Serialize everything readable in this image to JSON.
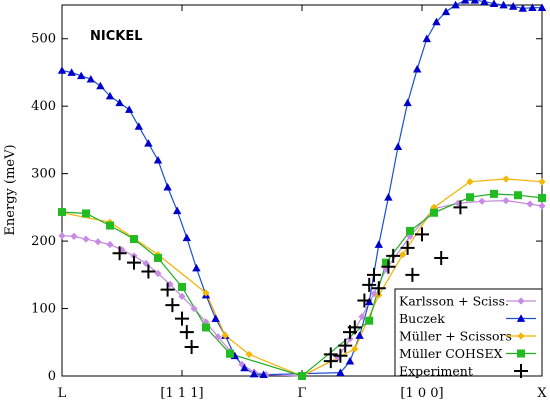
{
  "chart_data": {
    "type": "line",
    "title": "NICKEL",
    "ylabel": "Energy (meV)",
    "xlabel": "",
    "ylim": [
      0,
      550
    ],
    "xlim": [
      -1,
      1
    ],
    "grid": false,
    "legend_position": "bottom-right",
    "yticks": [
      0,
      100,
      200,
      300,
      400,
      500
    ],
    "xticks": [
      {
        "x": -1,
        "label": "L"
      },
      {
        "x": -0.5,
        "label": "[1 1 1]"
      },
      {
        "x": 0,
        "label": "Γ"
      },
      {
        "x": 0.5,
        "label": "[1 0 0]"
      },
      {
        "x": 1,
        "label": "X"
      }
    ],
    "series": [
      {
        "name": "Karlsson + Sciss.",
        "color": "#c78be3",
        "line_color": "#c08ad8",
        "marker": "diamond",
        "points": [
          [
            -1,
            208
          ],
          [
            -0.95,
            207
          ],
          [
            -0.9,
            203
          ],
          [
            -0.85,
            199
          ],
          [
            -0.8,
            195
          ],
          [
            -0.75,
            187
          ],
          [
            -0.7,
            178
          ],
          [
            -0.65,
            167
          ],
          [
            -0.6,
            152
          ],
          [
            -0.55,
            136
          ],
          [
            -0.5,
            118
          ],
          [
            -0.45,
            100
          ],
          [
            -0.4,
            80
          ],
          [
            -0.35,
            58
          ],
          [
            -0.3,
            37
          ],
          [
            -0.25,
            17
          ],
          [
            -0.2,
            6
          ],
          [
            -0.15,
            2
          ],
          [
            0,
            0
          ],
          [
            0.15,
            27
          ],
          [
            0.2,
            55
          ],
          [
            0.25,
            88
          ],
          [
            0.3,
            122
          ],
          [
            0.35,
            158
          ],
          [
            0.45,
            207
          ],
          [
            0.55,
            248
          ],
          [
            0.65,
            256
          ],
          [
            0.75,
            259
          ],
          [
            0.85,
            260
          ],
          [
            0.95,
            255
          ],
          [
            1,
            252
          ]
        ]
      },
      {
        "name": "Buczek",
        "color": "#0000cc",
        "line_color": "#1c4fd6",
        "marker": "triangle",
        "points": [
          [
            -1,
            453
          ],
          [
            -0.96,
            450
          ],
          [
            -0.92,
            445
          ],
          [
            -0.88,
            440
          ],
          [
            -0.84,
            430
          ],
          [
            -0.8,
            415
          ],
          [
            -0.76,
            405
          ],
          [
            -0.72,
            395
          ],
          [
            -0.68,
            370
          ],
          [
            -0.64,
            345
          ],
          [
            -0.6,
            320
          ],
          [
            -0.56,
            280
          ],
          [
            -0.52,
            245
          ],
          [
            -0.48,
            205
          ],
          [
            -0.44,
            160
          ],
          [
            -0.4,
            120
          ],
          [
            -0.36,
            85
          ],
          [
            -0.32,
            60
          ],
          [
            -0.28,
            30
          ],
          [
            -0.24,
            12
          ],
          [
            -0.2,
            3
          ],
          [
            -0.16,
            2
          ],
          [
            0.16,
            5
          ],
          [
            0.2,
            22
          ],
          [
            0.24,
            60
          ],
          [
            0.28,
            110
          ],
          [
            0.32,
            195
          ],
          [
            0.36,
            265
          ],
          [
            0.4,
            340
          ],
          [
            0.44,
            405
          ],
          [
            0.48,
            455
          ],
          [
            0.52,
            500
          ],
          [
            0.56,
            525
          ],
          [
            0.6,
            540
          ],
          [
            0.64,
            550
          ],
          [
            0.68,
            557
          ],
          [
            0.72,
            557
          ],
          [
            0.76,
            555
          ],
          [
            0.8,
            552
          ],
          [
            0.84,
            550
          ],
          [
            0.88,
            548
          ],
          [
            0.92,
            545
          ],
          [
            0.96,
            546
          ],
          [
            1,
            546
          ]
        ]
      },
      {
        "name": "Müller + Scissors",
        "color": "#f5b800",
        "line_color": "#f2b000",
        "marker": "diamond",
        "points": [
          [
            -1,
            242
          ],
          [
            -0.8,
            228
          ],
          [
            -0.6,
            180
          ],
          [
            -0.4,
            123
          ],
          [
            -0.32,
            60
          ],
          [
            -0.22,
            32
          ],
          [
            0,
            0
          ],
          [
            0.22,
            40
          ],
          [
            0.32,
            120
          ],
          [
            0.42,
            180
          ],
          [
            0.55,
            250
          ],
          [
            0.7,
            288
          ],
          [
            0.85,
            292
          ],
          [
            1,
            288
          ]
        ]
      },
      {
        "name": "Müller COHSEX",
        "color": "#22bb22",
        "line_color": "#1fae1f",
        "marker": "square",
        "points": [
          [
            -1,
            243
          ],
          [
            -0.9,
            241
          ],
          [
            -0.8,
            223
          ],
          [
            -0.7,
            203
          ],
          [
            -0.6,
            175
          ],
          [
            -0.5,
            132
          ],
          [
            -0.4,
            72
          ],
          [
            -0.3,
            33
          ],
          [
            0,
            0
          ],
          [
            0.28,
            82
          ],
          [
            0.35,
            168
          ],
          [
            0.45,
            215
          ],
          [
            0.55,
            242
          ],
          [
            0.7,
            265
          ],
          [
            0.8,
            270
          ],
          [
            0.9,
            268
          ],
          [
            1,
            264
          ]
        ],
        "overrides_note": ""
      },
      {
        "name": "Experiment",
        "color": "#000000",
        "marker": "plus",
        "line": false,
        "points": [
          [
            -0.76,
            182
          ],
          [
            -0.7,
            168
          ],
          [
            -0.64,
            155
          ],
          [
            -0.56,
            128
          ],
          [
            -0.54,
            105
          ],
          [
            -0.5,
            85
          ],
          [
            -0.48,
            65
          ],
          [
            -0.46,
            43
          ],
          [
            0.12,
            32
          ],
          [
            0.12,
            22
          ],
          [
            0.16,
            30
          ],
          [
            0.18,
            45
          ],
          [
            0.2,
            65
          ],
          [
            0.22,
            72
          ],
          [
            0.26,
            112
          ],
          [
            0.28,
            135
          ],
          [
            0.3,
            150
          ],
          [
            0.32,
            130
          ],
          [
            0.36,
            162
          ],
          [
            0.38,
            178
          ],
          [
            0.44,
            190
          ],
          [
            0.46,
            150
          ],
          [
            0.5,
            210
          ],
          [
            0.58,
            175
          ],
          [
            0.66,
            250
          ]
        ]
      }
    ]
  }
}
